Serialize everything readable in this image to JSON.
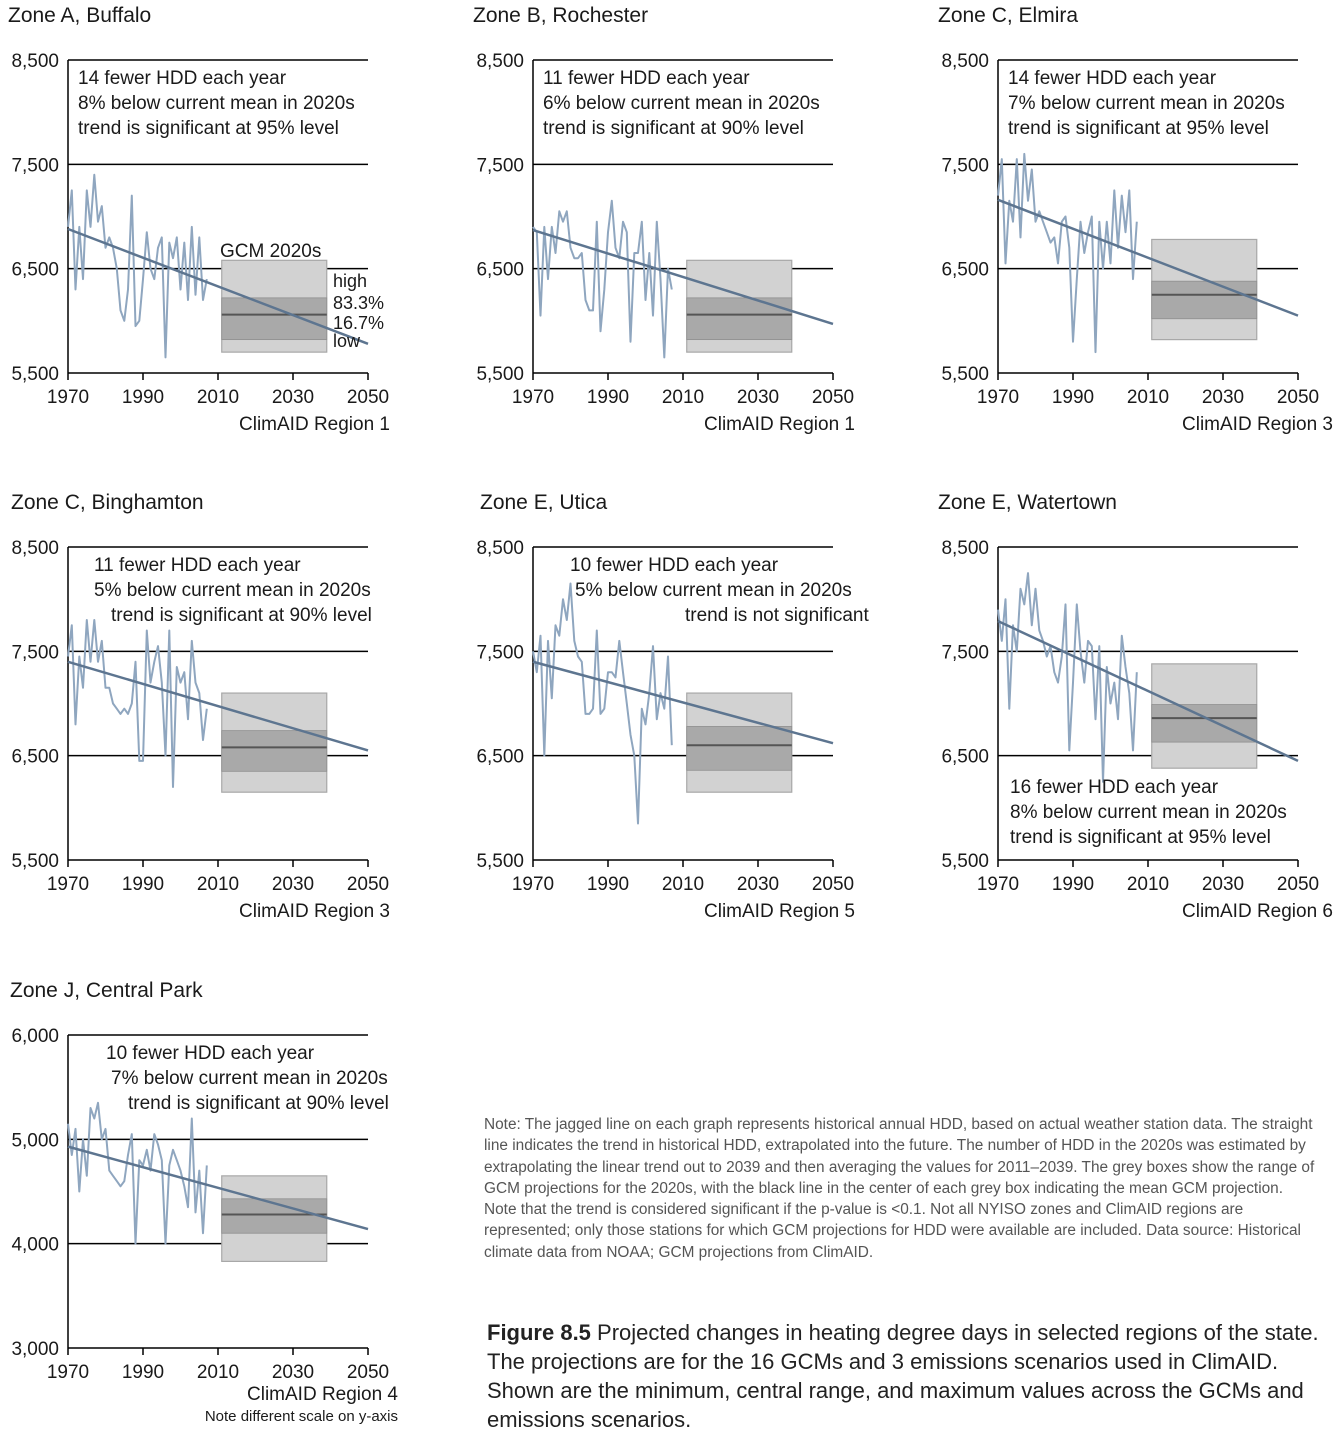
{
  "colors": {
    "history": "#8fa6bf",
    "trend": "#5d7590",
    "box_outer": "#d2d2d2",
    "box_inner": "#a9a9a9",
    "box_mean": "#555555",
    "gridline": "#000000"
  },
  "legend_labels": {
    "title": "GCM 2020s",
    "high": "high",
    "upper": "83.3%",
    "lower": "16.7%",
    "low": "low"
  },
  "chart_data": [
    {
      "type": "line",
      "title": "Zone A, Buffalo",
      "region_label": "ClimAID Region 1",
      "x_ticks": [
        "1970",
        "1990",
        "2010",
        "2030",
        "2050"
      ],
      "y_ticks": [
        "5,500",
        "6,500",
        "7,500",
        "8,500"
      ],
      "ylim": [
        5500,
        8500
      ],
      "xlim": [
        1970,
        2050
      ],
      "annotation": [
        "14 fewer HDD each year",
        "8% below current mean in 2020s",
        "trend is significant at 95% level"
      ],
      "trend": {
        "x": [
          1970,
          2050
        ],
        "y": [
          6880,
          5780
        ]
      },
      "gcm_2020s": {
        "low": 5700,
        "p16_7": 5820,
        "mean": 6060,
        "p83_3": 6220,
        "high": 6580
      },
      "history": {
        "x": [
          1970,
          1971,
          1972,
          1973,
          1974,
          1975,
          1976,
          1977,
          1978,
          1979,
          1980,
          1981,
          1982,
          1983,
          1984,
          1985,
          1986,
          1987,
          1988,
          1989,
          1990,
          1991,
          1992,
          1993,
          1994,
          1995,
          1996,
          1997,
          1998,
          1999,
          2000,
          2001,
          2002,
          2003,
          2004,
          2005,
          2006,
          2007
        ],
        "y": [
          6900,
          7250,
          6300,
          6900,
          6400,
          7250,
          6900,
          7400,
          6950,
          7100,
          6700,
          6800,
          6700,
          6500,
          6100,
          6000,
          6300,
          7200,
          5950,
          6000,
          6400,
          6850,
          6500,
          6400,
          6700,
          6800,
          5650,
          6750,
          6600,
          6800,
          6300,
          6750,
          6200,
          6900,
          6250,
          6800,
          6200,
          6400
        ]
      }
    },
    {
      "type": "line",
      "title": "Zone B, Rochester",
      "region_label": "ClimAID Region 1",
      "x_ticks": [
        "1970",
        "1990",
        "2010",
        "2030",
        "2050"
      ],
      "y_ticks": [
        "5,500",
        "6,500",
        "7,500",
        "8,500"
      ],
      "ylim": [
        5500,
        8500
      ],
      "xlim": [
        1970,
        2050
      ],
      "annotation": [
        "11 fewer HDD each year",
        "6% below current mean in 2020s",
        "trend is significant at 90% level"
      ],
      "trend": {
        "x": [
          1970,
          2050
        ],
        "y": [
          6870,
          5970
        ]
      },
      "gcm_2020s": {
        "low": 5700,
        "p16_7": 5820,
        "mean": 6060,
        "p83_3": 6220,
        "high": 6580
      },
      "history": {
        "x": [
          1970,
          1971,
          1972,
          1973,
          1974,
          1975,
          1976,
          1977,
          1978,
          1979,
          1980,
          1981,
          1982,
          1983,
          1984,
          1985,
          1986,
          1987,
          1988,
          1989,
          1990,
          1991,
          1992,
          1993,
          1994,
          1995,
          1996,
          1997,
          1998,
          1999,
          2000,
          2001,
          2002,
          2003,
          2004,
          2005,
          2006,
          2007
        ],
        "y": [
          6900,
          6850,
          6050,
          6900,
          6400,
          6900,
          6650,
          7050,
          6950,
          7050,
          6700,
          6600,
          6600,
          6650,
          6200,
          6100,
          6100,
          6950,
          5900,
          6300,
          6850,
          7150,
          6700,
          6600,
          6950,
          6850,
          5800,
          6650,
          6650,
          6950,
          6200,
          6650,
          6050,
          6950,
          6400,
          5650,
          6500,
          6300
        ]
      }
    },
    {
      "type": "line",
      "title": "Zone C, Elmira",
      "region_label": "ClimAID Region 3",
      "x_ticks": [
        "1970",
        "1990",
        "2010",
        "2030",
        "2050"
      ],
      "y_ticks": [
        "5,500",
        "6,500",
        "7,500",
        "8,500"
      ],
      "ylim": [
        5500,
        8500
      ],
      "xlim": [
        1970,
        2050
      ],
      "annotation": [
        "14 fewer HDD each year",
        "7% below current mean in 2020s",
        "trend is significant at 95% level"
      ],
      "trend": {
        "x": [
          1970,
          2050
        ],
        "y": [
          7160,
          6050
        ]
      },
      "gcm_2020s": {
        "low": 5820,
        "p16_7": 6020,
        "mean": 6250,
        "p83_3": 6380,
        "high": 6780
      },
      "history": {
        "x": [
          1970,
          1971,
          1972,
          1973,
          1974,
          1975,
          1976,
          1977,
          1978,
          1979,
          1980,
          1981,
          1982,
          1983,
          1984,
          1985,
          1986,
          1987,
          1988,
          1989,
          1990,
          1991,
          1992,
          1993,
          1994,
          1995,
          1996,
          1997,
          1998,
          1999,
          2000,
          2001,
          2002,
          2003,
          2004,
          2005,
          2006,
          2007
        ],
        "y": [
          7200,
          7550,
          6550,
          7150,
          6950,
          7550,
          6800,
          7600,
          7150,
          7450,
          6950,
          7050,
          6950,
          6850,
          6750,
          6800,
          6550,
          6950,
          7000,
          6700,
          5800,
          6400,
          6950,
          6650,
          6850,
          7000,
          5700,
          6950,
          6500,
          6950,
          6550,
          7250,
          6700,
          7200,
          6850,
          7250,
          6400,
          6950
        ]
      }
    },
    {
      "type": "line",
      "title": "Zone C, Binghamton",
      "region_label": "ClimAID Region 3",
      "x_ticks": [
        "1970",
        "1990",
        "2010",
        "2030",
        "2050"
      ],
      "y_ticks": [
        "5,500",
        "6,500",
        "7,500",
        "8,500"
      ],
      "ylim": [
        5500,
        8500
      ],
      "xlim": [
        1970,
        2050
      ],
      "annotation": [
        "11 fewer HDD each year",
        "5% below current mean in 2020s",
        "trend is significant at 90% level"
      ],
      "trend": {
        "x": [
          1970,
          2050
        ],
        "y": [
          7400,
          6550
        ]
      },
      "gcm_2020s": {
        "low": 6150,
        "p16_7": 6350,
        "mean": 6580,
        "p83_3": 6740,
        "high": 7100
      },
      "history": {
        "x": [
          1970,
          1971,
          1972,
          1973,
          1974,
          1975,
          1976,
          1977,
          1978,
          1979,
          1980,
          1981,
          1982,
          1983,
          1984,
          1985,
          1986,
          1987,
          1988,
          1989,
          1990,
          1991,
          1992,
          1993,
          1994,
          1995,
          1996,
          1997,
          1998,
          1999,
          2000,
          2001,
          2002,
          2003,
          2004,
          2005,
          2006,
          2007
        ],
        "y": [
          7450,
          7750,
          6800,
          7450,
          7150,
          7800,
          7400,
          7800,
          7400,
          7600,
          7150,
          7150,
          7000,
          6950,
          6900,
          6950,
          6900,
          7000,
          7400,
          6450,
          6450,
          7700,
          7200,
          7400,
          7550,
          7200,
          6500,
          7700,
          6200,
          7350,
          7200,
          7300,
          6850,
          7600,
          7200,
          7100,
          6650,
          6950
        ]
      }
    },
    {
      "type": "line",
      "title": "Zone E, Utica",
      "region_label": "ClimAID Region 5",
      "x_ticks": [
        "1970",
        "1990",
        "2010",
        "2030",
        "2050"
      ],
      "y_ticks": [
        "5,500",
        "6,500",
        "7,500",
        "8,500"
      ],
      "ylim": [
        5500,
        8500
      ],
      "xlim": [
        1970,
        2050
      ],
      "annotation": [
        "10 fewer HDD each year",
        "5% below current mean in 2020s",
        "trend is not significant"
      ],
      "trend": {
        "x": [
          1970,
          2050
        ],
        "y": [
          7400,
          6620
        ]
      },
      "gcm_2020s": {
        "low": 6150,
        "p16_7": 6360,
        "mean": 6600,
        "p83_3": 6780,
        "high": 7100
      },
      "history": {
        "x": [
          1970,
          1971,
          1972,
          1973,
          1974,
          1975,
          1976,
          1977,
          1978,
          1979,
          1980,
          1981,
          1982,
          1983,
          1984,
          1985,
          1986,
          1987,
          1988,
          1989,
          1990,
          1991,
          1992,
          1993,
          1994,
          1995,
          1996,
          1997,
          1998,
          1999,
          2000,
          2001,
          2002,
          2003,
          2004,
          2005,
          2006,
          2007
        ],
        "y": [
          7500,
          7300,
          7650,
          6500,
          7600,
          7050,
          7750,
          7650,
          8000,
          7800,
          8150,
          7600,
          7450,
          7400,
          6900,
          6900,
          6950,
          7700,
          6900,
          6950,
          7300,
          7300,
          7250,
          7600,
          7300,
          7000,
          6700,
          6500,
          5850,
          6950,
          6800,
          7100,
          7550,
          6850,
          7100,
          6950,
          7450,
          6600
        ]
      }
    },
    {
      "type": "line",
      "title": "Zone E, Watertown",
      "region_label": "ClimAID Region 6",
      "x_ticks": [
        "1970",
        "1990",
        "2010",
        "2030",
        "2050"
      ],
      "y_ticks": [
        "5,500",
        "6,500",
        "7,500",
        "8,500"
      ],
      "ylim": [
        5500,
        8500
      ],
      "xlim": [
        1970,
        2050
      ],
      "annotation": [
        "16 fewer HDD each year",
        "8% below current mean in 2020s",
        "trend is significant at 95% level"
      ],
      "trend": {
        "x": [
          1970,
          2050
        ],
        "y": [
          7790,
          6450
        ]
      },
      "gcm_2020s": {
        "low": 6380,
        "p16_7": 6630,
        "mean": 6860,
        "p83_3": 6990,
        "high": 7380
      },
      "history": {
        "x": [
          1970,
          1971,
          1972,
          1973,
          1974,
          1975,
          1976,
          1977,
          1978,
          1979,
          1980,
          1981,
          1982,
          1983,
          1984,
          1985,
          1986,
          1987,
          1988,
          1989,
          1990,
          1991,
          1992,
          1993,
          1994,
          1995,
          1996,
          1997,
          1998,
          1999,
          2000,
          2001,
          2002,
          2003,
          2004,
          2005,
          2006,
          2007
        ],
        "y": [
          7900,
          7600,
          8000,
          6950,
          7750,
          7500,
          8100,
          7950,
          8250,
          7750,
          8100,
          7700,
          7600,
          7450,
          7550,
          7300,
          7200,
          7450,
          7950,
          6550,
          7200,
          7950,
          7500,
          7200,
          7600,
          7550,
          6850,
          7550,
          6250,
          7350,
          7000,
          7200,
          6850,
          7650,
          7350,
          7100,
          6550,
          7300
        ]
      }
    },
    {
      "type": "line",
      "title": "Zone J, Central Park",
      "region_label": "ClimAID Region 4",
      "note": "Note different scale on y-axis",
      "x_ticks": [
        "1970",
        "1990",
        "2010",
        "2030",
        "2050"
      ],
      "y_ticks": [
        "3,000",
        "4,000",
        "5,000",
        "6,000"
      ],
      "ylim": [
        3000,
        6000
      ],
      "xlim": [
        1970,
        2050
      ],
      "annotation": [
        "10 fewer HDD each year",
        "7% below current mean in 2020s",
        "trend is significant at 90% level"
      ],
      "trend": {
        "x": [
          1970,
          2050
        ],
        "y": [
          4930,
          4140
        ]
      },
      "gcm_2020s": {
        "low": 3830,
        "p16_7": 4100,
        "mean": 4280,
        "p83_3": 4430,
        "high": 4650
      },
      "history": {
        "x": [
          1970,
          1971,
          1972,
          1973,
          1974,
          1975,
          1976,
          1977,
          1978,
          1979,
          1980,
          1981,
          1982,
          1983,
          1984,
          1985,
          1986,
          1987,
          1988,
          1989,
          1990,
          1991,
          1992,
          1993,
          1994,
          1995,
          1996,
          1997,
          1998,
          1999,
          2000,
          2001,
          2002,
          2003,
          2004,
          2005,
          2006,
          2007
        ],
        "y": [
          5150,
          4850,
          5100,
          4500,
          5000,
          4650,
          5300,
          5200,
          5350,
          5000,
          5100,
          4700,
          4650,
          4600,
          4550,
          4600,
          4850,
          5050,
          4000,
          4800,
          4750,
          4900,
          4700,
          5050,
          4950,
          4800,
          4000,
          4750,
          4900,
          4800,
          4700,
          4550,
          4350,
          5200,
          4300,
          4700,
          4100,
          4750
        ]
      }
    }
  ],
  "note_text": "Note: The jagged line on each graph represents historical annual HDD, based on actual weather station data. The straight line indicates the trend in historical HDD, extrapolated into the future. The number of HDD in the 2020s was estimated by extrapolating the linear trend out to 2039 and then averaging the values for 2011–2039. The grey boxes show the range of GCM projections for the 2020s, with the black line in the center of each grey box indicating the mean GCM projection. Note that the trend is considered significant if the p-value is <0.1. Not all NYISO zones and ClimAID regions are represented; only those stations for which GCM projections for HDD were available are included. Data source: Historical climate data from NOAA; GCM projections from ClimAID.",
  "caption": {
    "label": "Figure 8.5",
    "text": " Projected changes in heating degree days in selected regions of the state. The projections are for the 16 GCMs and 3 emissions scenarios used in ClimAID. Shown are the minimum, central range, and maximum values across the GCMs and emissions scenarios."
  }
}
